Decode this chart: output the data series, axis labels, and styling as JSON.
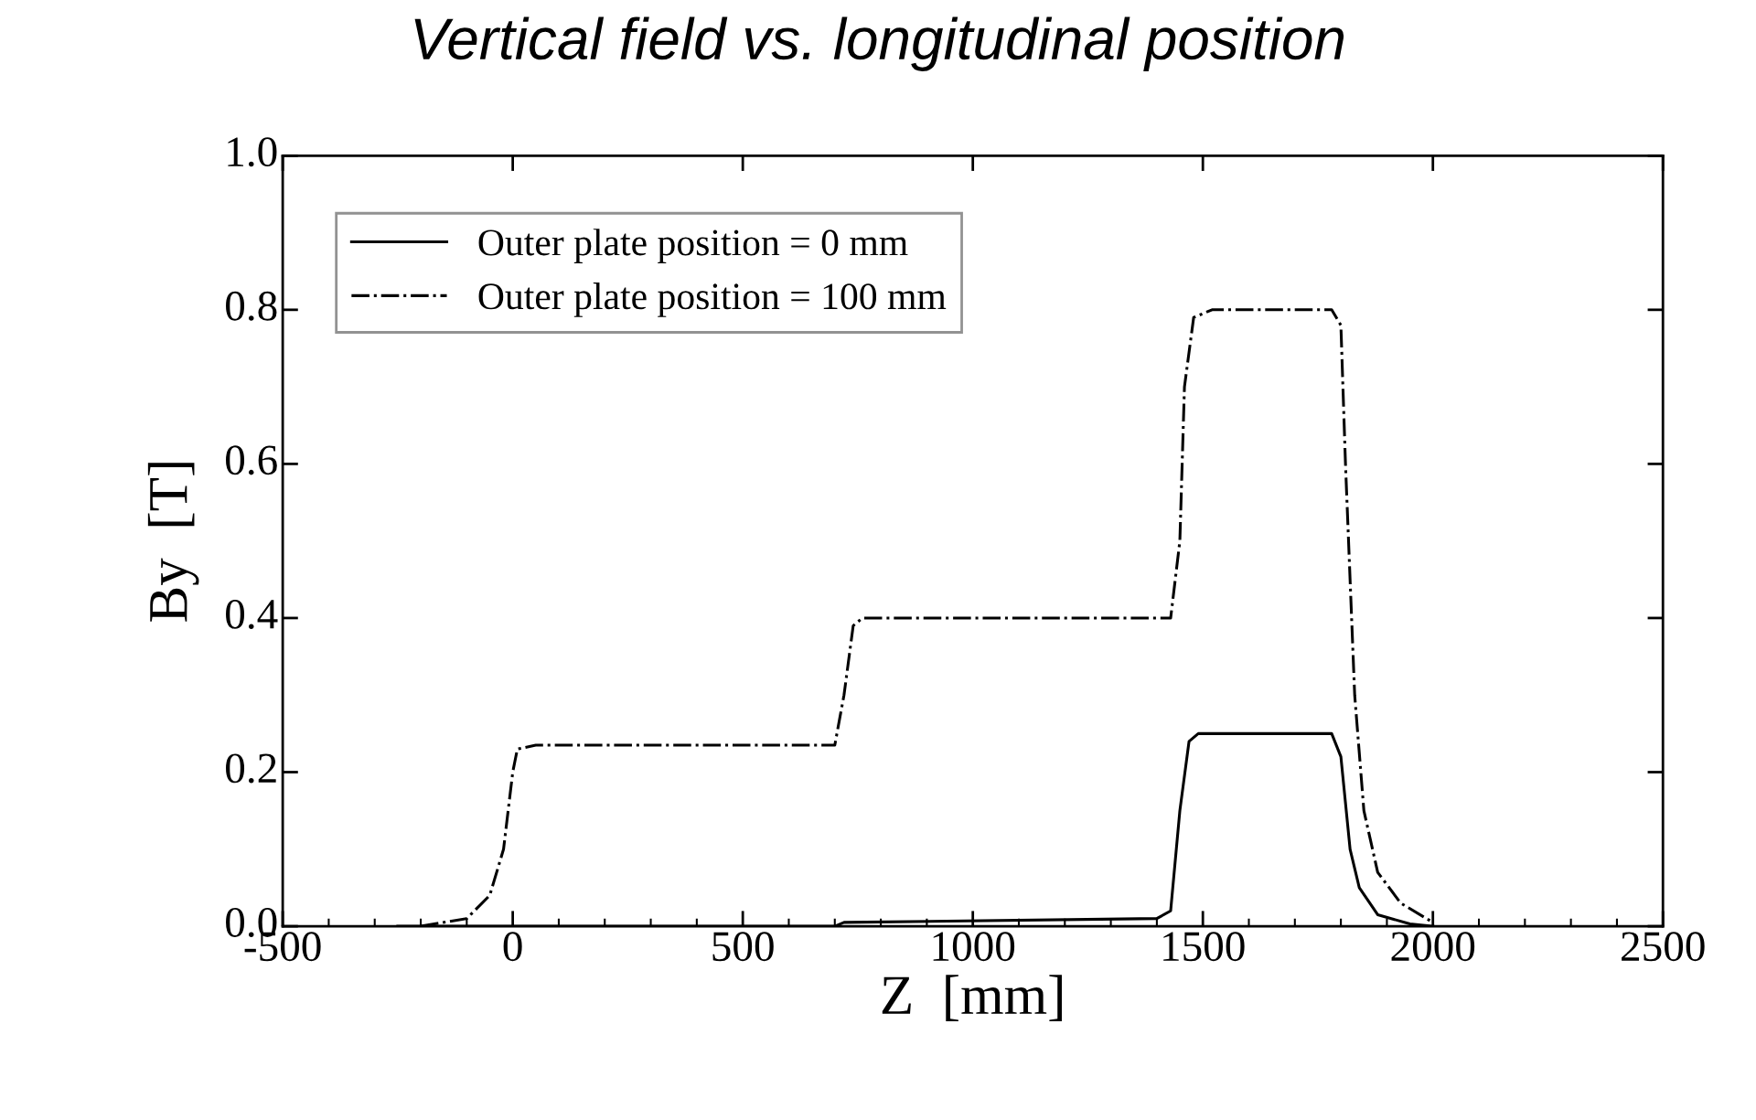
{
  "chart_data": {
    "type": "line",
    "title": "Vertical field vs. longitudinal position",
    "xlabel": "Z  [mm]",
    "ylabel": "By  [T]",
    "xlim": [
      -500,
      2500
    ],
    "xticks": [
      -500,
      0,
      500,
      1000,
      1500,
      2000,
      2500
    ],
    "ylim": [
      0,
      1
    ],
    "yticks": [
      {
        "value": 0,
        "label": "0.0"
      },
      {
        "value": 0.2,
        "label": "0.2"
      },
      {
        "value": 0.4,
        "label": "0.4"
      },
      {
        "value": 0.6,
        "label": "0.6"
      },
      {
        "value": 0.8,
        "label": "0.8"
      },
      {
        "value": 1,
        "label": "1.0"
      }
    ],
    "grid": false,
    "legend": "top left",
    "marker": "none",
    "series": [
      {
        "name": "Outer plate position = 0 mm",
        "color": "#000000",
        "line_style": "solid",
        "x": [
          -250,
          700,
          720,
          1400,
          1430,
          1450,
          1470,
          1490,
          1780,
          1800,
          1820,
          1840,
          1880,
          1950,
          2000
        ],
        "values": [
          0,
          0,
          0.005,
          0.01,
          0.02,
          0.15,
          0.24,
          0.25,
          0.25,
          0.22,
          0.1,
          0.05,
          0.015,
          0.003,
          0
        ]
      },
      {
        "name": "Outer plate position = 100 mm",
        "color": "#000000",
        "line_style": "dashed",
        "x": [
          -200,
          -100,
          -50,
          -20,
          0,
          10,
          50,
          700,
          720,
          740,
          760,
          1430,
          1450,
          1460,
          1480,
          1520,
          1780,
          1800,
          1810,
          1830,
          1850,
          1880,
          1930,
          2000
        ],
        "values": [
          0,
          0.01,
          0.04,
          0.1,
          0.2,
          0.23,
          0.235,
          0.235,
          0.3,
          0.39,
          0.4,
          0.4,
          0.5,
          0.7,
          0.79,
          0.8,
          0.8,
          0.78,
          0.6,
          0.3,
          0.15,
          0.07,
          0.03,
          0.005
        ]
      }
    ]
  }
}
